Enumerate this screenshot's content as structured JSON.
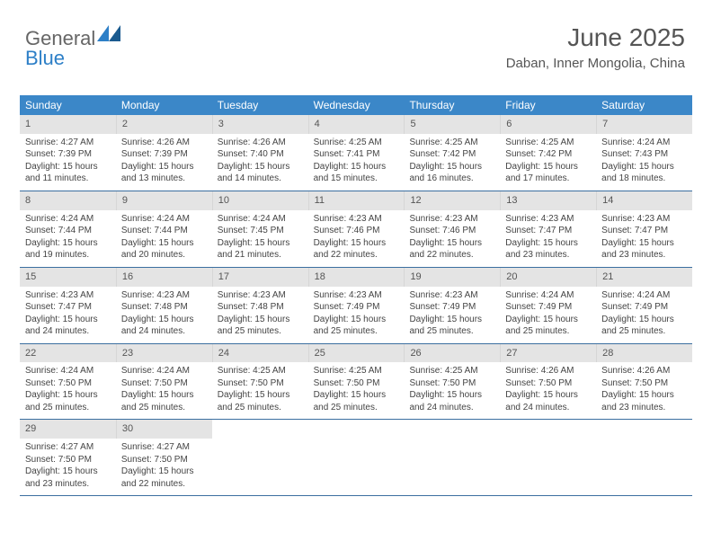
{
  "logo": {
    "text1": "General",
    "text2": "Blue"
  },
  "header": {
    "title": "June 2025",
    "subtitle": "Daban, Inner Mongolia, China"
  },
  "colors": {
    "header_bar": "#3b87c8",
    "header_text": "#ffffff",
    "daynum_bg": "#e4e4e4",
    "border": "#3b6fa0",
    "body_text": "#444444",
    "title_text": "#555555"
  },
  "weekdays": [
    "Sunday",
    "Monday",
    "Tuesday",
    "Wednesday",
    "Thursday",
    "Friday",
    "Saturday"
  ],
  "weeks": [
    [
      {
        "n": "1",
        "sr": "4:27 AM",
        "ss": "7:39 PM",
        "dl": "15 hours and 11 minutes."
      },
      {
        "n": "2",
        "sr": "4:26 AM",
        "ss": "7:39 PM",
        "dl": "15 hours and 13 minutes."
      },
      {
        "n": "3",
        "sr": "4:26 AM",
        "ss": "7:40 PM",
        "dl": "15 hours and 14 minutes."
      },
      {
        "n": "4",
        "sr": "4:25 AM",
        "ss": "7:41 PM",
        "dl": "15 hours and 15 minutes."
      },
      {
        "n": "5",
        "sr": "4:25 AM",
        "ss": "7:42 PM",
        "dl": "15 hours and 16 minutes."
      },
      {
        "n": "6",
        "sr": "4:25 AM",
        "ss": "7:42 PM",
        "dl": "15 hours and 17 minutes."
      },
      {
        "n": "7",
        "sr": "4:24 AM",
        "ss": "7:43 PM",
        "dl": "15 hours and 18 minutes."
      }
    ],
    [
      {
        "n": "8",
        "sr": "4:24 AM",
        "ss": "7:44 PM",
        "dl": "15 hours and 19 minutes."
      },
      {
        "n": "9",
        "sr": "4:24 AM",
        "ss": "7:44 PM",
        "dl": "15 hours and 20 minutes."
      },
      {
        "n": "10",
        "sr": "4:24 AM",
        "ss": "7:45 PM",
        "dl": "15 hours and 21 minutes."
      },
      {
        "n": "11",
        "sr": "4:23 AM",
        "ss": "7:46 PM",
        "dl": "15 hours and 22 minutes."
      },
      {
        "n": "12",
        "sr": "4:23 AM",
        "ss": "7:46 PM",
        "dl": "15 hours and 22 minutes."
      },
      {
        "n": "13",
        "sr": "4:23 AM",
        "ss": "7:47 PM",
        "dl": "15 hours and 23 minutes."
      },
      {
        "n": "14",
        "sr": "4:23 AM",
        "ss": "7:47 PM",
        "dl": "15 hours and 23 minutes."
      }
    ],
    [
      {
        "n": "15",
        "sr": "4:23 AM",
        "ss": "7:47 PM",
        "dl": "15 hours and 24 minutes."
      },
      {
        "n": "16",
        "sr": "4:23 AM",
        "ss": "7:48 PM",
        "dl": "15 hours and 24 minutes."
      },
      {
        "n": "17",
        "sr": "4:23 AM",
        "ss": "7:48 PM",
        "dl": "15 hours and 25 minutes."
      },
      {
        "n": "18",
        "sr": "4:23 AM",
        "ss": "7:49 PM",
        "dl": "15 hours and 25 minutes."
      },
      {
        "n": "19",
        "sr": "4:23 AM",
        "ss": "7:49 PM",
        "dl": "15 hours and 25 minutes."
      },
      {
        "n": "20",
        "sr": "4:24 AM",
        "ss": "7:49 PM",
        "dl": "15 hours and 25 minutes."
      },
      {
        "n": "21",
        "sr": "4:24 AM",
        "ss": "7:49 PM",
        "dl": "15 hours and 25 minutes."
      }
    ],
    [
      {
        "n": "22",
        "sr": "4:24 AM",
        "ss": "7:50 PM",
        "dl": "15 hours and 25 minutes."
      },
      {
        "n": "23",
        "sr": "4:24 AM",
        "ss": "7:50 PM",
        "dl": "15 hours and 25 minutes."
      },
      {
        "n": "24",
        "sr": "4:25 AM",
        "ss": "7:50 PM",
        "dl": "15 hours and 25 minutes."
      },
      {
        "n": "25",
        "sr": "4:25 AM",
        "ss": "7:50 PM",
        "dl": "15 hours and 25 minutes."
      },
      {
        "n": "26",
        "sr": "4:25 AM",
        "ss": "7:50 PM",
        "dl": "15 hours and 24 minutes."
      },
      {
        "n": "27",
        "sr": "4:26 AM",
        "ss": "7:50 PM",
        "dl": "15 hours and 24 minutes."
      },
      {
        "n": "28",
        "sr": "4:26 AM",
        "ss": "7:50 PM",
        "dl": "15 hours and 23 minutes."
      }
    ],
    [
      {
        "n": "29",
        "sr": "4:27 AM",
        "ss": "7:50 PM",
        "dl": "15 hours and 23 minutes."
      },
      {
        "n": "30",
        "sr": "4:27 AM",
        "ss": "7:50 PM",
        "dl": "15 hours and 22 minutes."
      },
      null,
      null,
      null,
      null,
      null
    ]
  ],
  "labels": {
    "sunrise": "Sunrise:",
    "sunset": "Sunset:",
    "daylight": "Daylight:"
  }
}
